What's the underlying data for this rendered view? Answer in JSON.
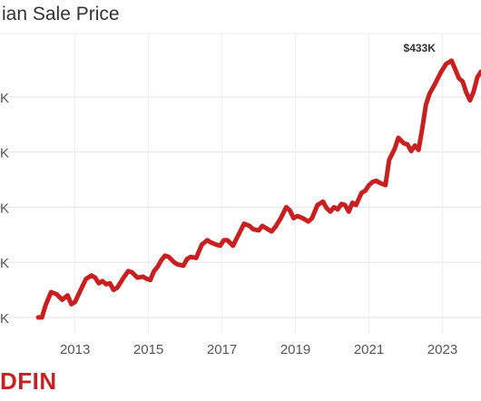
{
  "page": {
    "title": "ian Sale Price",
    "brand": "DFIN"
  },
  "chart_data": {
    "type": "line",
    "title": "ian Sale Price",
    "xlabel": "",
    "ylabel": "",
    "xlim": [
      2011.7,
      2024.05
    ],
    "ylim": [
      190,
      465
    ],
    "grid": true,
    "x_ticks": [
      2013,
      2015,
      2017,
      2019,
      2021,
      2023
    ],
    "x_tick_labels": [
      "2013",
      "2015",
      "2017",
      "2019",
      "2021",
      "2023"
    ],
    "y_ticks": [
      200,
      250,
      300,
      350,
      400
    ],
    "y_tick_labels": [
      "K",
      "K",
      "K",
      "K",
      "K"
    ],
    "line_color": "#c82021",
    "annotation": {
      "x": 2022.45,
      "y": 433,
      "label": "$433K"
    },
    "series": [
      {
        "x": [
          2012.0,
          2012.1,
          2012.2,
          2012.35,
          2012.5,
          2012.65,
          2012.8,
          2012.9,
          2013.0,
          2013.1,
          2013.2,
          2013.3,
          2013.45,
          2013.55,
          2013.65,
          2013.75,
          2013.85,
          2013.95,
          2014.05,
          2014.15,
          2014.3,
          2014.45,
          2014.55,
          2014.7,
          2014.85,
          2014.95,
          2015.05,
          2015.15,
          2015.25,
          2015.35,
          2015.45,
          2015.55,
          2015.7,
          2015.8,
          2015.95,
          2016.05,
          2016.15,
          2016.3,
          2016.45,
          2016.6,
          2016.7,
          2016.85,
          2016.95,
          2017.05,
          2017.15,
          2017.3,
          2017.45,
          2017.6,
          2017.75,
          2017.85,
          2018.0,
          2018.1,
          2018.25,
          2018.35,
          2018.45,
          2018.6,
          2018.75,
          2018.85,
          2018.95,
          2019.05,
          2019.2,
          2019.35,
          2019.45,
          2019.6,
          2019.75,
          2019.85,
          2019.95,
          2020.05,
          2020.15,
          2020.25,
          2020.35,
          2020.45,
          2020.55,
          2020.65,
          2020.8,
          2020.9,
          2021.0,
          2021.1,
          2021.2,
          2021.3,
          2021.45,
          2021.55,
          2021.7,
          2021.8,
          2021.95,
          2022.05,
          2022.15,
          2022.25,
          2022.35,
          2022.45,
          2022.55,
          2022.65,
          2022.8,
          2022.95,
          2023.1,
          2023.25,
          2023.35,
          2023.45,
          2023.55,
          2023.65,
          2023.75,
          2023.85,
          2023.95,
          2024.05
        ],
        "y": [
          200,
          200,
          211,
          223,
          221,
          216,
          220,
          212,
          214,
          221,
          228,
          235,
          238,
          236,
          231,
          233,
          230,
          231,
          225,
          227,
          235,
          242,
          241,
          236,
          237,
          235,
          234,
          242,
          246,
          252,
          256,
          255,
          250,
          248,
          247,
          253,
          255,
          254,
          266,
          270,
          268,
          266,
          265,
          270,
          270,
          265,
          275,
          285,
          283,
          280,
          279,
          283,
          280,
          278,
          282,
          290,
          300,
          297,
          290,
          292,
          290,
          287,
          290,
          302,
          305,
          299,
          296,
          300,
          298,
          303,
          302,
          296,
          304,
          302,
          313,
          315,
          320,
          323,
          324,
          322,
          320,
          343,
          353,
          363,
          358,
          357,
          351,
          356,
          352,
          371,
          393,
          403,
          412,
          422,
          430,
          433,
          425,
          417,
          414,
          404,
          397,
          405,
          418,
          423
        ],
        "y_approx_note_removed": null
      }
    ]
  }
}
